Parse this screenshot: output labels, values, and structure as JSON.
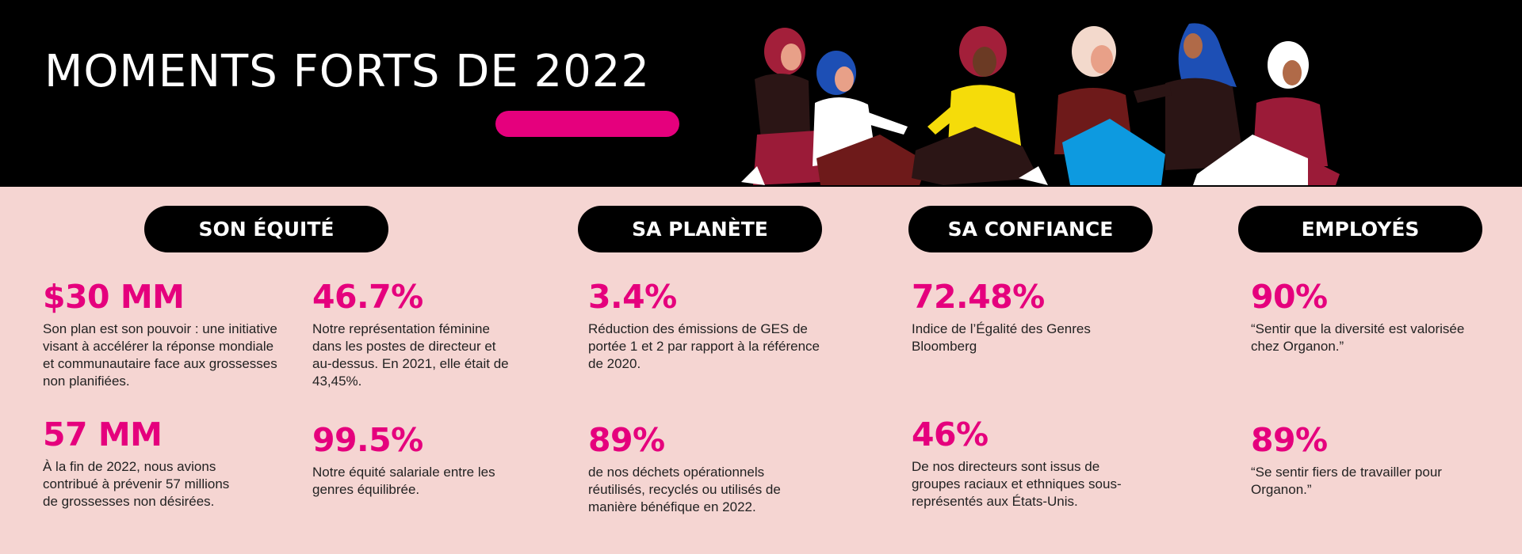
{
  "header": {
    "title": "MOMENTS FORTS DE 2022",
    "accent_color": "#e5007d",
    "illustration_icon": "group-of-women-illustration"
  },
  "columns": [
    {
      "heading": "SON ÉQUITÉ",
      "stats": [
        {
          "value": "$30 MM",
          "text": "Son plan est son pouvoir : une initiative visant à accélérer la réponse mondiale et communautaire face aux grossesses non planifiées."
        },
        {
          "value": "57 MM",
          "text": "À la fin de 2022, nous avions contribué à prévenir 57 millions de grossesses non désirées."
        },
        {
          "value": "46.7%",
          "text": "Notre représentation féminine dans les postes de directeur et au-dessus. En 2021, elle était de 43,45%."
        },
        {
          "value": "99.5%",
          "text": "Notre équité salariale entre les genres équilibrée."
        }
      ]
    },
    {
      "heading": "SA PLANÈTE",
      "stats": [
        {
          "value": "3.4%",
          "text": "Réduction des émissions de GES de portée 1 et 2 par rapport à la référence de 2020."
        },
        {
          "value": "89%",
          "text": "de nos déchets opérationnels réutilisés, recyclés ou utilisés de manière bénéfique en 2022."
        }
      ]
    },
    {
      "heading": "SA CONFIANCE",
      "stats": [
        {
          "value": "72.48%",
          "text": "Indice de l’Égalité des Genres Bloomberg"
        },
        {
          "value": "46%",
          "text": "De nos directeurs sont issus de groupes raciaux et ethniques sous-représentés aux États-Unis."
        }
      ]
    },
    {
      "heading": "EMPLOYÉS",
      "stats": [
        {
          "value": "90%",
          "text": "“Sentir que la diversité est valorisée chez Organon.”"
        },
        {
          "value": "89%",
          "text": "“Se sentir fiers de travailler pour Organon.”"
        }
      ]
    }
  ]
}
